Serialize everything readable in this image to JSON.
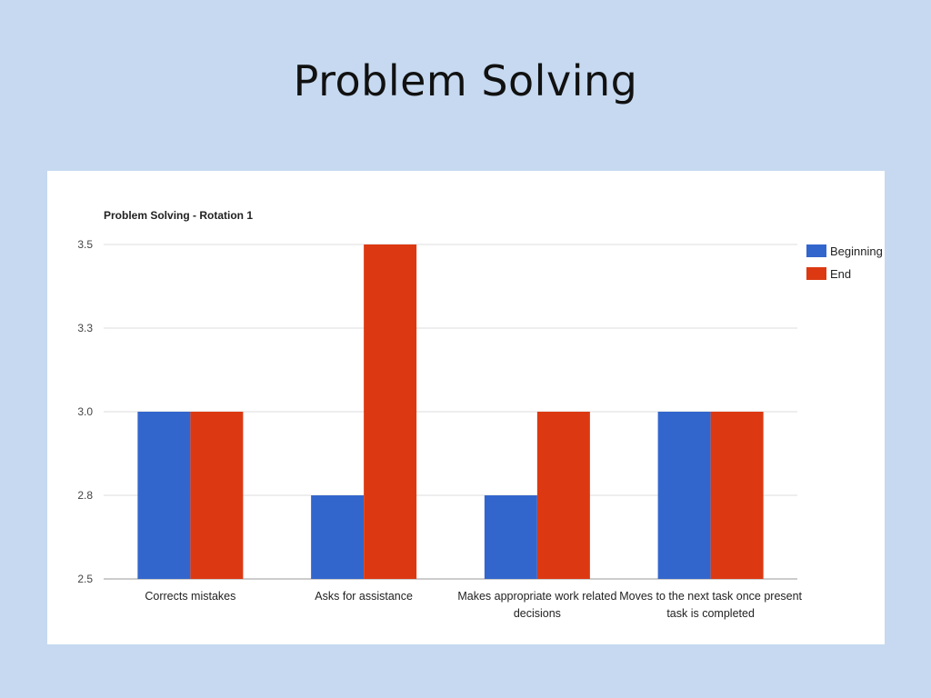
{
  "slide": {
    "title": "Problem Solving"
  },
  "chart_data": {
    "type": "bar",
    "title": "Problem Solving - Rotation 1",
    "xlabel": "",
    "ylabel": "",
    "ylim": [
      2.5,
      3.5
    ],
    "y_ticks": [
      "2.5",
      "2.8",
      "3.0",
      "3.3",
      "3.5"
    ],
    "y_tick_values": [
      2.5,
      2.75,
      3.0,
      3.25,
      3.5
    ],
    "grid": true,
    "legend_position": "right",
    "categories": [
      [
        "Corrects mistakes"
      ],
      [
        "Asks for assistance"
      ],
      [
        "Makes appropriate work related",
        "decisions"
      ],
      [
        "Moves to the next task once present",
        "task is completed"
      ]
    ],
    "series": [
      {
        "name": "Beginning",
        "color": "#3366cc",
        "values": [
          3.0,
          2.75,
          2.75,
          3.0
        ]
      },
      {
        "name": "End",
        "color": "#dc3912",
        "values": [
          3.0,
          3.5,
          3.0,
          3.0
        ]
      }
    ]
  }
}
